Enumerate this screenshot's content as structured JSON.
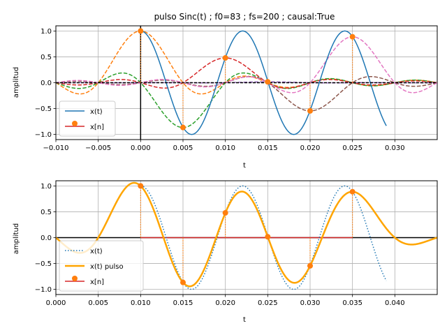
{
  "chart_data": [
    {
      "type": "line",
      "title": "pulso Sinc(t) ; f0=83 ; fs=200 ; causal:True",
      "xlabel": "t",
      "ylabel": "amplitud",
      "xlim": [
        -0.01,
        0.035
      ],
      "ylim": [
        -1.1,
        1.1
      ],
      "x_ticks": [
        -0.01,
        -0.005,
        0.0,
        0.005,
        0.01,
        0.015,
        0.02,
        0.025,
        0.03
      ],
      "x_tick_labels": [
        "−0.010",
        "−0.005",
        "0.000",
        "0.005",
        "0.010",
        "0.015",
        "0.020",
        "0.025",
        "0.030"
      ],
      "y_ticks": [
        1.0,
        0.5,
        0.0,
        -0.5,
        -1.0
      ],
      "y_tick_labels": [
        "1.0",
        "0.5",
        "0.0",
        "−0.5",
        "−1.0"
      ],
      "grid": true,
      "legend_position": "lower-left",
      "legend": [
        {
          "label": "x(t)",
          "color": "#1f77b4",
          "style": "line"
        },
        {
          "label": "x[n]",
          "color": "#d62728",
          "style": "stem",
          "marker_color": "#ff7f0e"
        }
      ],
      "signal": {
        "f0": 83,
        "fs": 200,
        "x_range": [
          0.0,
          0.029
        ]
      },
      "samples": {
        "n": [
          0.0,
          0.005,
          0.01,
          0.015,
          0.02,
          0.025
        ],
        "values": [
          1.0,
          -0.866,
          0.479,
          0.017,
          -0.545,
          0.888
        ]
      },
      "sinc_pulses": [
        {
          "center": 0.0,
          "amplitude": 1.0,
          "color": "#ff7f0e"
        },
        {
          "center": 0.005,
          "amplitude": -0.866,
          "color": "#2ca02c"
        },
        {
          "center": 0.01,
          "amplitude": 0.479,
          "color": "#d62728"
        },
        {
          "center": 0.015,
          "amplitude": 0.017,
          "color": "#9467bd"
        },
        {
          "center": 0.02,
          "amplitude": -0.545,
          "color": "#8c564b"
        },
        {
          "center": 0.025,
          "amplitude": 0.888,
          "color": "#e377c2"
        }
      ]
    },
    {
      "type": "line",
      "title": "",
      "xlabel": "t",
      "ylabel": "amplitud",
      "xlim": [
        0.0,
        0.045
      ],
      "ylim": [
        -1.1,
        1.1
      ],
      "x_ticks": [
        0.0,
        0.005,
        0.01,
        0.015,
        0.02,
        0.025,
        0.03,
        0.035,
        0.04
      ],
      "x_tick_labels": [
        "0.000",
        "0.005",
        "0.010",
        "0.015",
        "0.020",
        "0.025",
        "0.030",
        "0.035",
        "0.040"
      ],
      "y_ticks": [
        1.0,
        0.5,
        0.0,
        -0.5,
        -1.0
      ],
      "y_tick_labels": [
        "1.0",
        "0.5",
        "0.0",
        "−0.5",
        "−1.0"
      ],
      "grid": true,
      "legend_position": "lower-left",
      "legend": [
        {
          "label": "x(t)",
          "color": "#1f77b4",
          "style": "dotted"
        },
        {
          "label": "x(t) pulso",
          "color": "#ffa500",
          "style": "line"
        },
        {
          "label": "x[n]",
          "color": "#d62728",
          "style": "stem",
          "marker_color": "#ff7f0e"
        }
      ],
      "signal": {
        "f0": 83,
        "fs": 200,
        "x_range": [
          0.01,
          0.039
        ]
      },
      "samples": {
        "n": [
          0.01,
          0.015,
          0.02,
          0.025,
          0.03,
          0.035
        ],
        "values": [
          1.0,
          -0.866,
          0.479,
          0.017,
          -0.545,
          0.888
        ]
      },
      "pulse": {
        "color": "#ffa500",
        "x_range": [
          0.0,
          0.045
        ]
      }
    }
  ]
}
